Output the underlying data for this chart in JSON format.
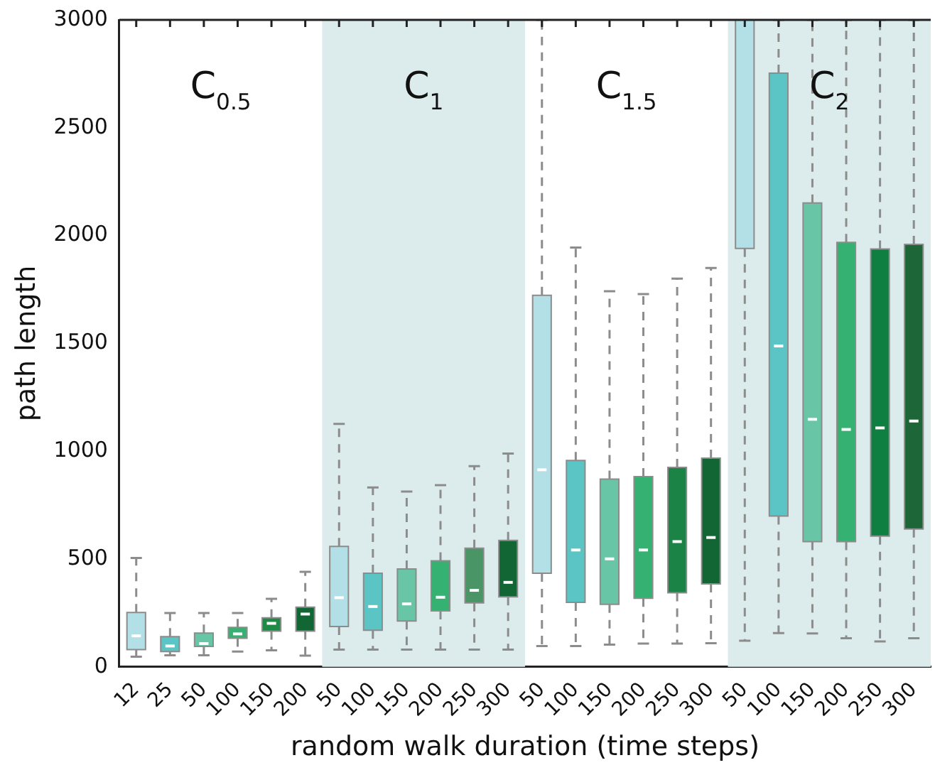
{
  "chart_data": {
    "type": "box",
    "xlabel": "random walk duration (time steps)",
    "ylabel": "path length",
    "categories": [
      "12",
      "25",
      "50",
      "100",
      "150",
      "200",
      "50",
      "100",
      "150",
      "200",
      "250",
      "300",
      "50",
      "100",
      "150",
      "200",
      "250",
      "300",
      "50",
      "100",
      "150",
      "200",
      "250",
      "300"
    ],
    "ylim": [
      0,
      3000
    ],
    "yticks": [
      0,
      500,
      1000,
      1500,
      2000,
      2500,
      3000
    ],
    "grid": false,
    "legend": false,
    "colors": [
      "#b3e0e6",
      "#5ac5c4",
      "#68c6a7",
      "#35b271",
      "#1f8a47",
      "#116633",
      "#b3e0e6",
      "#5ac5c4",
      "#68c6a7",
      "#35b271",
      "#4a9566",
      "#116633",
      "#b3e0e6",
      "#5ac5c4",
      "#68c6a7",
      "#35b271",
      "#1a8345",
      "#116633",
      "#b3e0e6",
      "#5ac5c4",
      "#68c6a7",
      "#35b271",
      "#0e7f40",
      "#1d6638"
    ],
    "boxes": [
      {
        "low": 47,
        "q1": 80,
        "median": 144,
        "q3": 252,
        "high": 505
      },
      {
        "low": 54,
        "q1": 71,
        "median": 97,
        "q3": 140,
        "high": 250
      },
      {
        "low": 54,
        "q1": 95,
        "median": 108,
        "q3": 157,
        "high": 250
      },
      {
        "low": 71,
        "q1": 133,
        "median": 153,
        "q3": 183,
        "high": 250
      },
      {
        "low": 77,
        "q1": 166,
        "median": 202,
        "q3": 228,
        "high": 316
      },
      {
        "low": 52,
        "q1": 166,
        "median": 245,
        "q3": 277,
        "high": 441
      },
      {
        "low": 80,
        "q1": 187,
        "median": 321,
        "q3": 559,
        "high": 1127
      },
      {
        "low": 80,
        "q1": 170,
        "median": 280,
        "q3": 434,
        "high": 832
      },
      {
        "low": 80,
        "q1": 213,
        "median": 292,
        "q3": 454,
        "high": 813
      },
      {
        "low": 80,
        "q1": 260,
        "median": 323,
        "q3": 492,
        "high": 843
      },
      {
        "low": 80,
        "q1": 297,
        "median": 355,
        "q3": 550,
        "high": 931
      },
      {
        "low": 80,
        "q1": 325,
        "median": 392,
        "q3": 587,
        "high": 989
      },
      {
        "low": 97,
        "q1": 434,
        "median": 914,
        "q3": 1723,
        "high": 3000
      },
      {
        "low": 97,
        "q1": 299,
        "median": 542,
        "q3": 957,
        "high": 1944
      },
      {
        "low": 103,
        "q1": 290,
        "median": 501,
        "q3": 871,
        "high": 1742
      },
      {
        "low": 108,
        "q1": 318,
        "median": 542,
        "q3": 882,
        "high": 1729
      },
      {
        "low": 108,
        "q1": 344,
        "median": 581,
        "q3": 925,
        "high": 1800
      },
      {
        "low": 110,
        "q1": 385,
        "median": 600,
        "q3": 968,
        "high": 1850
      },
      {
        "low": 121,
        "q1": 1940,
        "median": null,
        "q3": 3000,
        "high": 3000
      },
      {
        "low": 157,
        "q1": 699,
        "median": 1488,
        "q3": 2753,
        "high": 3000
      },
      {
        "low": 155,
        "q1": 581,
        "median": 1148,
        "q3": 2151,
        "high": 3000
      },
      {
        "low": 133,
        "q1": 581,
        "median": 1101,
        "q3": 1968,
        "high": 3000
      },
      {
        "low": 118,
        "q1": 606,
        "median": 1108,
        "q3": 1938,
        "high": 3000
      },
      {
        "low": 133,
        "q1": 639,
        "median": 1140,
        "q3": 1959,
        "high": 3000
      }
    ],
    "annotations": [
      "C$_{0.5}$",
      "C$_{1}$",
      "C$_{1.5}$",
      "C$_{2}$"
    ]
  }
}
